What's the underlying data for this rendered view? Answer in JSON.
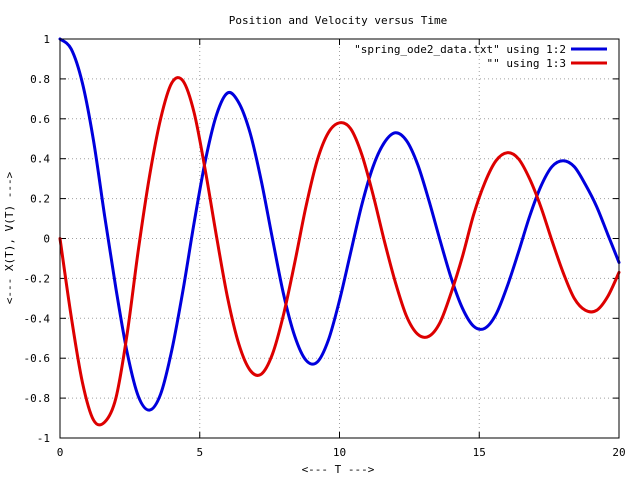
{
  "chart_data": {
    "type": "line",
    "title": "Position and Velocity versus Time",
    "xlabel": "<--- T --->",
    "ylabel": "<--- X(T), V(T) --->",
    "xlim": [
      0,
      20
    ],
    "ylim": [
      -1,
      1
    ],
    "grid": true,
    "legend_position": "top-right",
    "x_ticks": [
      "0",
      "5",
      "10",
      "15",
      "20"
    ],
    "y_ticks": [
      "-1",
      "-0.8",
      "-0.6",
      "-0.4",
      "-0.2",
      "0",
      "0.2",
      "0.4",
      "0.6",
      "0.8",
      "1"
    ],
    "x": [
      0,
      0.4,
      0.8,
      1.2,
      1.6,
      2.0,
      2.4,
      2.8,
      3.2,
      3.6,
      4.0,
      4.4,
      4.8,
      5.2,
      5.6,
      6.0,
      6.4,
      6.8,
      7.2,
      7.6,
      8.0,
      8.4,
      8.8,
      9.2,
      9.6,
      10.0,
      10.4,
      10.8,
      11.2,
      11.6,
      12.0,
      12.4,
      12.8,
      13.2,
      13.6,
      14.0,
      14.4,
      14.8,
      15.2,
      15.6,
      16.0,
      16.4,
      16.8,
      17.2,
      17.6,
      18.0,
      18.4,
      18.8,
      19.2,
      19.6,
      20.0
    ],
    "series": [
      {
        "name": "\"spring_ode2_data.txt\" using 1:2",
        "color": "#0000dd",
        "values": [
          1.0,
          0.95,
          0.78,
          0.49,
          0.11,
          -0.25,
          -0.57,
          -0.79,
          -0.86,
          -0.78,
          -0.56,
          -0.26,
          0.08,
          0.39,
          0.62,
          0.73,
          0.68,
          0.53,
          0.29,
          0.0,
          -0.28,
          -0.49,
          -0.61,
          -0.62,
          -0.51,
          -0.31,
          -0.07,
          0.17,
          0.36,
          0.48,
          0.53,
          0.49,
          0.37,
          0.19,
          -0.01,
          -0.2,
          -0.35,
          -0.44,
          -0.45,
          -0.38,
          -0.24,
          -0.07,
          0.11,
          0.26,
          0.36,
          0.39,
          0.36,
          0.27,
          0.16,
          0.02,
          -0.12
        ]
      },
      {
        "name": "\"\" using 1:3",
        "color": "#dd0000",
        "values": [
          0.0,
          -0.39,
          -0.72,
          -0.91,
          -0.92,
          -0.8,
          -0.48,
          -0.06,
          0.31,
          0.6,
          0.78,
          0.79,
          0.63,
          0.34,
          0.01,
          -0.3,
          -0.53,
          -0.66,
          -0.68,
          -0.58,
          -0.38,
          -0.12,
          0.16,
          0.39,
          0.53,
          0.58,
          0.55,
          0.42,
          0.22,
          -0.01,
          -0.22,
          -0.39,
          -0.48,
          -0.49,
          -0.42,
          -0.27,
          -0.09,
          0.12,
          0.28,
          0.39,
          0.43,
          0.4,
          0.3,
          0.16,
          -0.01,
          -0.17,
          -0.3,
          -0.36,
          -0.36,
          -0.29,
          -0.17
        ]
      }
    ]
  }
}
